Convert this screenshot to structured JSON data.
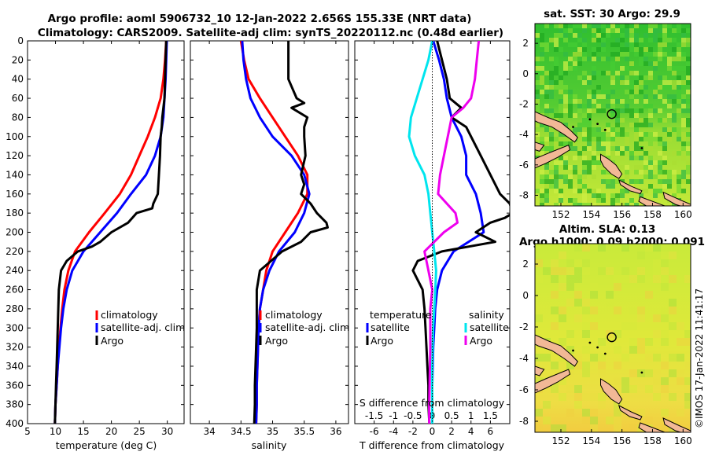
{
  "figure_title": {
    "line1": "Argo profile: aoml 5906732_10 12-Jan-2022 2.656S 155.33E (NRT data)",
    "line2": "Climatology: CARS2009. Satellite-adj clim: synTS_20220112.nc (0.48d earlier)"
  },
  "colors": {
    "climatology": "#ff0000",
    "satellite": "#0000ff",
    "argo": "#000000",
    "s_satellite": "#00e5ee",
    "s_argo": "#ee00ee",
    "land": "#f2b896",
    "sea_a": "#33cc33",
    "sea_b": "#ccee33"
  },
  "legend_profiles": [
    "climatology",
    "satellite-adj. clim",
    "Argo"
  ],
  "legend_diff": {
    "temperature_title": "temperature",
    "salinity_title": "salinity",
    "temperature_items": [
      "satellite",
      "Argo"
    ],
    "salinity_items": [
      "satellite",
      "Argo"
    ]
  },
  "chart_data": [
    {
      "type": "line",
      "id": "temperature",
      "xlabel": "temperature (deg C)",
      "ylabel": "",
      "xlim": [
        5,
        33
      ],
      "ylim": [
        400,
        0
      ],
      "xticks": [
        5,
        10,
        15,
        20,
        25,
        30
      ],
      "yticks": [
        0,
        20,
        40,
        60,
        80,
        100,
        120,
        140,
        160,
        180,
        200,
        220,
        240,
        260,
        280,
        300,
        320,
        340,
        360,
        380,
        400
      ],
      "series": [
        {
          "name": "climatology",
          "depth": [
            0,
            20,
            40,
            60,
            80,
            100,
            120,
            140,
            160,
            180,
            200,
            220,
            240,
            260,
            280,
            300,
            320,
            340,
            360,
            380,
            400
          ],
          "values": [
            29.8,
            29.6,
            29.3,
            28.8,
            27.8,
            26.5,
            25.0,
            23.5,
            21.5,
            18.8,
            16.0,
            13.5,
            12.3,
            11.6,
            11.2,
            10.9,
            10.6,
            10.4,
            10.2,
            10.0,
            9.9
          ]
        },
        {
          "name": "satellite-adj. clim",
          "depth": [
            0,
            20,
            40,
            60,
            80,
            100,
            120,
            140,
            160,
            180,
            200,
            220,
            240,
            260,
            280,
            300,
            320,
            340,
            360,
            380,
            400
          ],
          "values": [
            29.9,
            29.8,
            29.7,
            29.5,
            29.3,
            28.8,
            27.8,
            26.2,
            23.5,
            21.0,
            18.0,
            15.0,
            13.0,
            12.0,
            11.4,
            11.0,
            10.7,
            10.4,
            10.2,
            10.0,
            9.9
          ]
        },
        {
          "name": "Argo",
          "depth": [
            0,
            20,
            40,
            60,
            70,
            80,
            90,
            100,
            120,
            140,
            160,
            170,
            175,
            180,
            190,
            200,
            210,
            215,
            220,
            230,
            240,
            260,
            280,
            300,
            320,
            340,
            360,
            380,
            400
          ],
          "values": [
            29.8,
            29.7,
            29.6,
            29.5,
            29.3,
            29.1,
            29.0,
            28.8,
            28.7,
            28.5,
            28.3,
            27.5,
            27.3,
            24.5,
            23.0,
            20.0,
            18.0,
            16.5,
            14.0,
            12.0,
            11.0,
            10.6,
            10.5,
            10.4,
            10.3,
            10.2,
            10.1,
            10.0,
            9.9
          ]
        }
      ]
    },
    {
      "type": "line",
      "id": "salinity",
      "xlabel": "salinity",
      "ylabel": "",
      "xlim": [
        33.7,
        36.2
      ],
      "ylim": [
        400,
        0
      ],
      "xticks": [
        34,
        34.5,
        35,
        35.5,
        36
      ],
      "series": [
        {
          "name": "climatology",
          "depth": [
            0,
            20,
            40,
            60,
            80,
            100,
            120,
            140,
            160,
            180,
            200,
            220,
            240,
            260,
            280,
            300,
            320,
            340,
            360,
            380,
            400
          ],
          "values": [
            34.5,
            34.55,
            34.62,
            34.8,
            35.0,
            35.2,
            35.4,
            35.55,
            35.55,
            35.4,
            35.2,
            35.0,
            34.9,
            34.85,
            34.8,
            34.78,
            34.77,
            34.76,
            34.75,
            34.75,
            34.74
          ]
        },
        {
          "name": "satellite-adj. clim",
          "depth": [
            0,
            20,
            40,
            60,
            80,
            100,
            120,
            140,
            160,
            180,
            200,
            220,
            240,
            260,
            280,
            300,
            320,
            340,
            360,
            380,
            400
          ],
          "values": [
            34.52,
            34.54,
            34.58,
            34.65,
            34.8,
            35.0,
            35.3,
            35.5,
            35.58,
            35.5,
            35.35,
            35.1,
            34.95,
            34.85,
            34.8,
            34.78,
            34.77,
            34.76,
            34.75,
            34.75,
            34.74
          ]
        },
        {
          "name": "Argo",
          "depth": [
            0,
            20,
            40,
            60,
            65,
            70,
            80,
            90,
            100,
            120,
            140,
            150,
            160,
            170,
            180,
            190,
            195,
            200,
            210,
            220,
            240,
            260,
            280,
            300,
            320,
            340,
            360,
            380,
            400
          ],
          "values": [
            35.25,
            35.25,
            35.25,
            35.38,
            35.5,
            35.3,
            35.55,
            35.5,
            35.5,
            35.52,
            35.45,
            35.5,
            35.45,
            35.6,
            35.7,
            35.85,
            35.87,
            35.6,
            35.45,
            35.15,
            34.8,
            34.75,
            34.75,
            34.75,
            34.74,
            34.73,
            34.72,
            34.72,
            34.71
          ]
        }
      ]
    },
    {
      "type": "line",
      "id": "differences",
      "xlabel": "T difference from climatology",
      "top_xlabel": "S difference from climatology",
      "xlim": [
        -8,
        8
      ],
      "ylim": [
        400,
        0
      ],
      "xticks": [
        -6,
        -4,
        -2,
        0,
        2,
        4,
        6
      ],
      "top_xticks": [
        -1.5,
        -1,
        -0.5,
        0,
        0.5,
        1,
        1.5
      ],
      "top_xlim": [
        -2,
        2
      ],
      "series": [
        {
          "name": "T satellite",
          "axis": "T",
          "depth": [
            0,
            20,
            40,
            60,
            80,
            100,
            120,
            140,
            160,
            180,
            200,
            220,
            240,
            260,
            280,
            300,
            320,
            340,
            360,
            380,
            400
          ],
          "values": [
            0.1,
            0.7,
            1.2,
            1.5,
            2.0,
            3.0,
            3.5,
            3.5,
            4.5,
            5.0,
            5.3,
            2.2,
            1.0,
            0.5,
            0.3,
            0.2,
            0.1,
            0.05,
            0.0,
            0.0,
            0.0
          ]
        },
        {
          "name": "T Argo",
          "axis": "T",
          "depth": [
            0,
            20,
            40,
            60,
            70,
            80,
            90,
            100,
            120,
            140,
            160,
            170,
            180,
            185,
            190,
            200,
            210,
            220,
            230,
            240,
            260,
            280,
            300,
            320,
            340,
            360,
            380,
            400
          ],
          "values": [
            0.5,
            1.0,
            1.5,
            1.8,
            3.0,
            2.0,
            3.5,
            4.0,
            5.0,
            6.0,
            7.0,
            8.0,
            8.3,
            7.5,
            6.0,
            4.5,
            6.5,
            1.0,
            -1.5,
            -2.0,
            -1.0,
            -0.8,
            -0.7,
            -0.6,
            -0.5,
            -0.4,
            -0.4,
            -0.3
          ]
        },
        {
          "name": "S satellite",
          "axis": "S",
          "depth": [
            0,
            20,
            40,
            60,
            80,
            100,
            120,
            140,
            160,
            180,
            200,
            220,
            240,
            260,
            280,
            300,
            320,
            340,
            360,
            380,
            400
          ],
          "values": [
            0.0,
            -0.1,
            -0.25,
            -0.4,
            -0.55,
            -0.6,
            -0.45,
            -0.2,
            -0.1,
            -0.05,
            0.0,
            0.05,
            0.1,
            0.08,
            0.05,
            0.02,
            0.01,
            0.0,
            0.0,
            0.0,
            0.0
          ]
        },
        {
          "name": "S Argo",
          "axis": "S",
          "depth": [
            0,
            20,
            40,
            60,
            70,
            80,
            90,
            100,
            120,
            140,
            160,
            180,
            190,
            200,
            210,
            220,
            240,
            260,
            280,
            300,
            320,
            340,
            360,
            380,
            400
          ],
          "values": [
            1.2,
            1.15,
            1.1,
            1.0,
            0.8,
            0.5,
            0.45,
            0.4,
            0.3,
            0.2,
            0.15,
            0.6,
            0.65,
            0.3,
            0.05,
            -0.2,
            -0.1,
            0.0,
            -0.05,
            -0.05,
            -0.05,
            -0.06,
            -0.07,
            -0.08,
            -0.08
          ]
        }
      ]
    },
    {
      "type": "heatmap",
      "id": "sst_map",
      "title": "sat. SST: 30 Argo: 29.9",
      "xlim": [
        150.3,
        160.5
      ],
      "ylim": [
        -8.7,
        3.3
      ],
      "xticks": [
        152,
        154,
        156,
        158,
        160
      ],
      "yticks": [
        2,
        0,
        -2,
        -4,
        -6,
        -8
      ],
      "argo_position": {
        "lon": 155.33,
        "lat": -2.656
      }
    },
    {
      "type": "heatmap",
      "id": "sla_map",
      "title_line1": "Altim. SLA: 0.13",
      "title_line2": "Argo h1000: 0.09 h2000: 0.091",
      "xlim": [
        150.3,
        160.5
      ],
      "ylim": [
        -8.7,
        3.3
      ],
      "xticks": [
        152,
        154,
        156,
        158,
        160
      ],
      "yticks": [
        2,
        0,
        -2,
        -4,
        -6,
        -8
      ],
      "argo_position": {
        "lon": 155.33,
        "lat": -2.656
      }
    }
  ],
  "credit": "©IMOS 17-Jan-2022 11:41:17"
}
